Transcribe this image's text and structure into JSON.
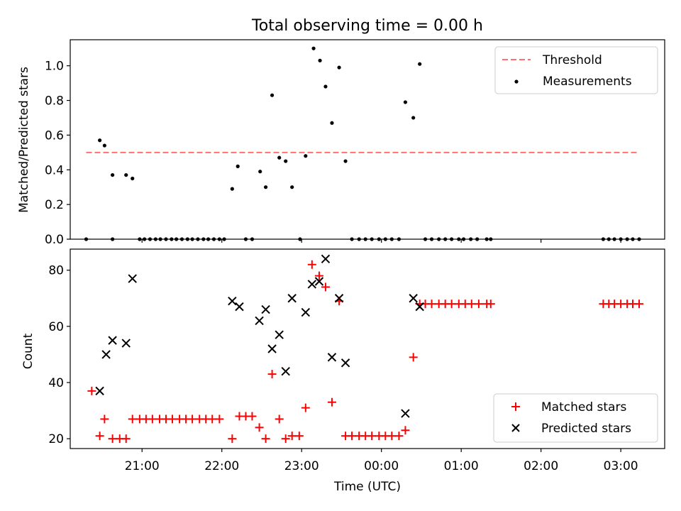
{
  "title": "Total observing time = 0.00 h",
  "chart_data": [
    {
      "type": "scatter",
      "ylabel": "Matched/Predicted stars",
      "ylim": [
        0,
        1.15
      ],
      "yticks": [
        0.0,
        0.2,
        0.4,
        0.6,
        0.8,
        1.0
      ],
      "ytick_labels": [
        "0.0",
        "0.2",
        "0.4",
        "0.6",
        "0.8",
        "1.0"
      ],
      "xlim_hours": [
        20.1,
        27.55
      ],
      "xticks_hours": [
        21,
        22,
        23,
        24,
        25,
        26,
        27
      ],
      "legend_position": "top-right",
      "threshold": {
        "name": "Threshold",
        "value": 0.5,
        "x_start_hours": 20.3,
        "x_end_hours": 27.2,
        "color": "#ff7070"
      },
      "series": [
        {
          "name": "Measurements",
          "color": "#000000",
          "x_hours": [
            20.3,
            20.47,
            20.53,
            20.63,
            20.63,
            20.8,
            20.88,
            20.97,
            21.03,
            21.1,
            21.17,
            21.23,
            21.3,
            21.37,
            21.43,
            21.5,
            21.57,
            21.63,
            21.7,
            21.77,
            21.83,
            21.9,
            21.97,
            22.03,
            22.13,
            22.2,
            22.3,
            22.38,
            22.48,
            22.55,
            22.63,
            22.72,
            22.8,
            22.88,
            22.98,
            23.05,
            23.15,
            23.23,
            23.3,
            23.38,
            23.47,
            23.55,
            23.63,
            23.72,
            23.8,
            23.88,
            23.97,
            24.05,
            24.13,
            24.22,
            24.3,
            24.4,
            24.48,
            24.55,
            24.63,
            24.72,
            24.8,
            24.88,
            24.97,
            25.03,
            25.12,
            25.2,
            25.32,
            25.37,
            26.78,
            26.85,
            26.92,
            27.0,
            27.08,
            27.15,
            27.23
          ],
          "y": [
            0.0,
            0.57,
            0.54,
            0.0,
            0.37,
            0.37,
            0.35,
            0.0,
            0.0,
            0.0,
            0.0,
            0.0,
            0.0,
            0.0,
            0.0,
            0.0,
            0.0,
            0.0,
            0.0,
            0.0,
            0.0,
            0.0,
            0.0,
            0.0,
            0.29,
            0.42,
            0.0,
            0.0,
            0.39,
            0.3,
            0.83,
            0.47,
            0.45,
            0.3,
            0.0,
            0.48,
            1.1,
            1.03,
            0.88,
            0.67,
            0.99,
            0.45,
            0.0,
            0.0,
            0.0,
            0.0,
            0.0,
            0.0,
            0.0,
            0.0,
            0.79,
            0.7,
            1.01,
            0.0,
            0.0,
            0.0,
            0.0,
            0.0,
            0.0,
            0.0,
            0.0,
            0.0,
            0.0,
            0.0,
            0.0,
            0.0,
            0.0,
            0.0,
            0.0,
            0.0,
            0.0
          ]
        }
      ]
    },
    {
      "type": "scatter",
      "xlabel": "Time (UTC)",
      "ylabel": "Count",
      "ylim": [
        16.5,
        87.5
      ],
      "yticks": [
        20,
        40,
        60,
        80
      ],
      "ytick_labels": [
        "20",
        "40",
        "60",
        "80"
      ],
      "xlim_hours": [
        20.1,
        27.55
      ],
      "xticks_hours": [
        21,
        22,
        23,
        24,
        25,
        26,
        27
      ],
      "xtick_labels": [
        "21:00",
        "22:00",
        "23:00",
        "00:00",
        "01:00",
        "02:00",
        "03:00"
      ],
      "legend_position": "bottom-right",
      "series": [
        {
          "name": "Matched stars",
          "marker": "plus",
          "color": "#ff0000",
          "x_hours": [
            20.37,
            20.47,
            20.53,
            20.63,
            20.72,
            20.8,
            20.88,
            20.97,
            21.05,
            21.13,
            21.22,
            21.3,
            21.38,
            21.47,
            21.55,
            21.63,
            21.72,
            21.8,
            21.88,
            21.97,
            22.13,
            22.22,
            22.3,
            22.38,
            22.47,
            22.55,
            22.63,
            22.72,
            22.8,
            22.88,
            22.97,
            23.05,
            23.13,
            23.22,
            23.3,
            23.38,
            23.47,
            23.55,
            23.63,
            23.72,
            23.8,
            23.88,
            23.97,
            24.05,
            24.13,
            24.22,
            24.3,
            24.4,
            24.48,
            24.55,
            24.63,
            24.72,
            24.8,
            24.88,
            24.97,
            25.05,
            25.13,
            25.22,
            25.32,
            25.37,
            26.78,
            26.85,
            26.92,
            27.0,
            27.08,
            27.15,
            27.23
          ],
          "y": [
            37,
            21,
            27,
            20,
            20,
            20,
            27,
            27,
            27,
            27,
            27,
            27,
            27,
            27,
            27,
            27,
            27,
            27,
            27,
            27,
            20,
            28,
            28,
            28,
            24,
            20,
            43,
            27,
            20,
            21,
            21,
            31,
            82,
            78,
            74,
            33,
            69,
            21,
            21,
            21,
            21,
            21,
            21,
            21,
            21,
            21,
            23,
            49,
            68,
            68,
            68,
            68,
            68,
            68,
            68,
            68,
            68,
            68,
            68,
            68,
            68,
            68,
            68,
            68,
            68,
            68,
            68
          ]
        },
        {
          "name": "Predicted stars",
          "marker": "x",
          "color": "#000000",
          "x_hours": [
            20.47,
            20.55,
            20.63,
            20.8,
            20.88,
            22.13,
            22.22,
            22.47,
            22.55,
            22.63,
            22.72,
            22.8,
            22.88,
            23.05,
            23.13,
            23.22,
            23.3,
            23.38,
            23.47,
            23.55,
            24.3,
            24.4,
            24.48
          ],
          "y": [
            37,
            50,
            55,
            54,
            77,
            69,
            67,
            62,
            66,
            52,
            57,
            44,
            70,
            65,
            75,
            76,
            84,
            49,
            70,
            47,
            29,
            70,
            67
          ]
        }
      ]
    }
  ]
}
